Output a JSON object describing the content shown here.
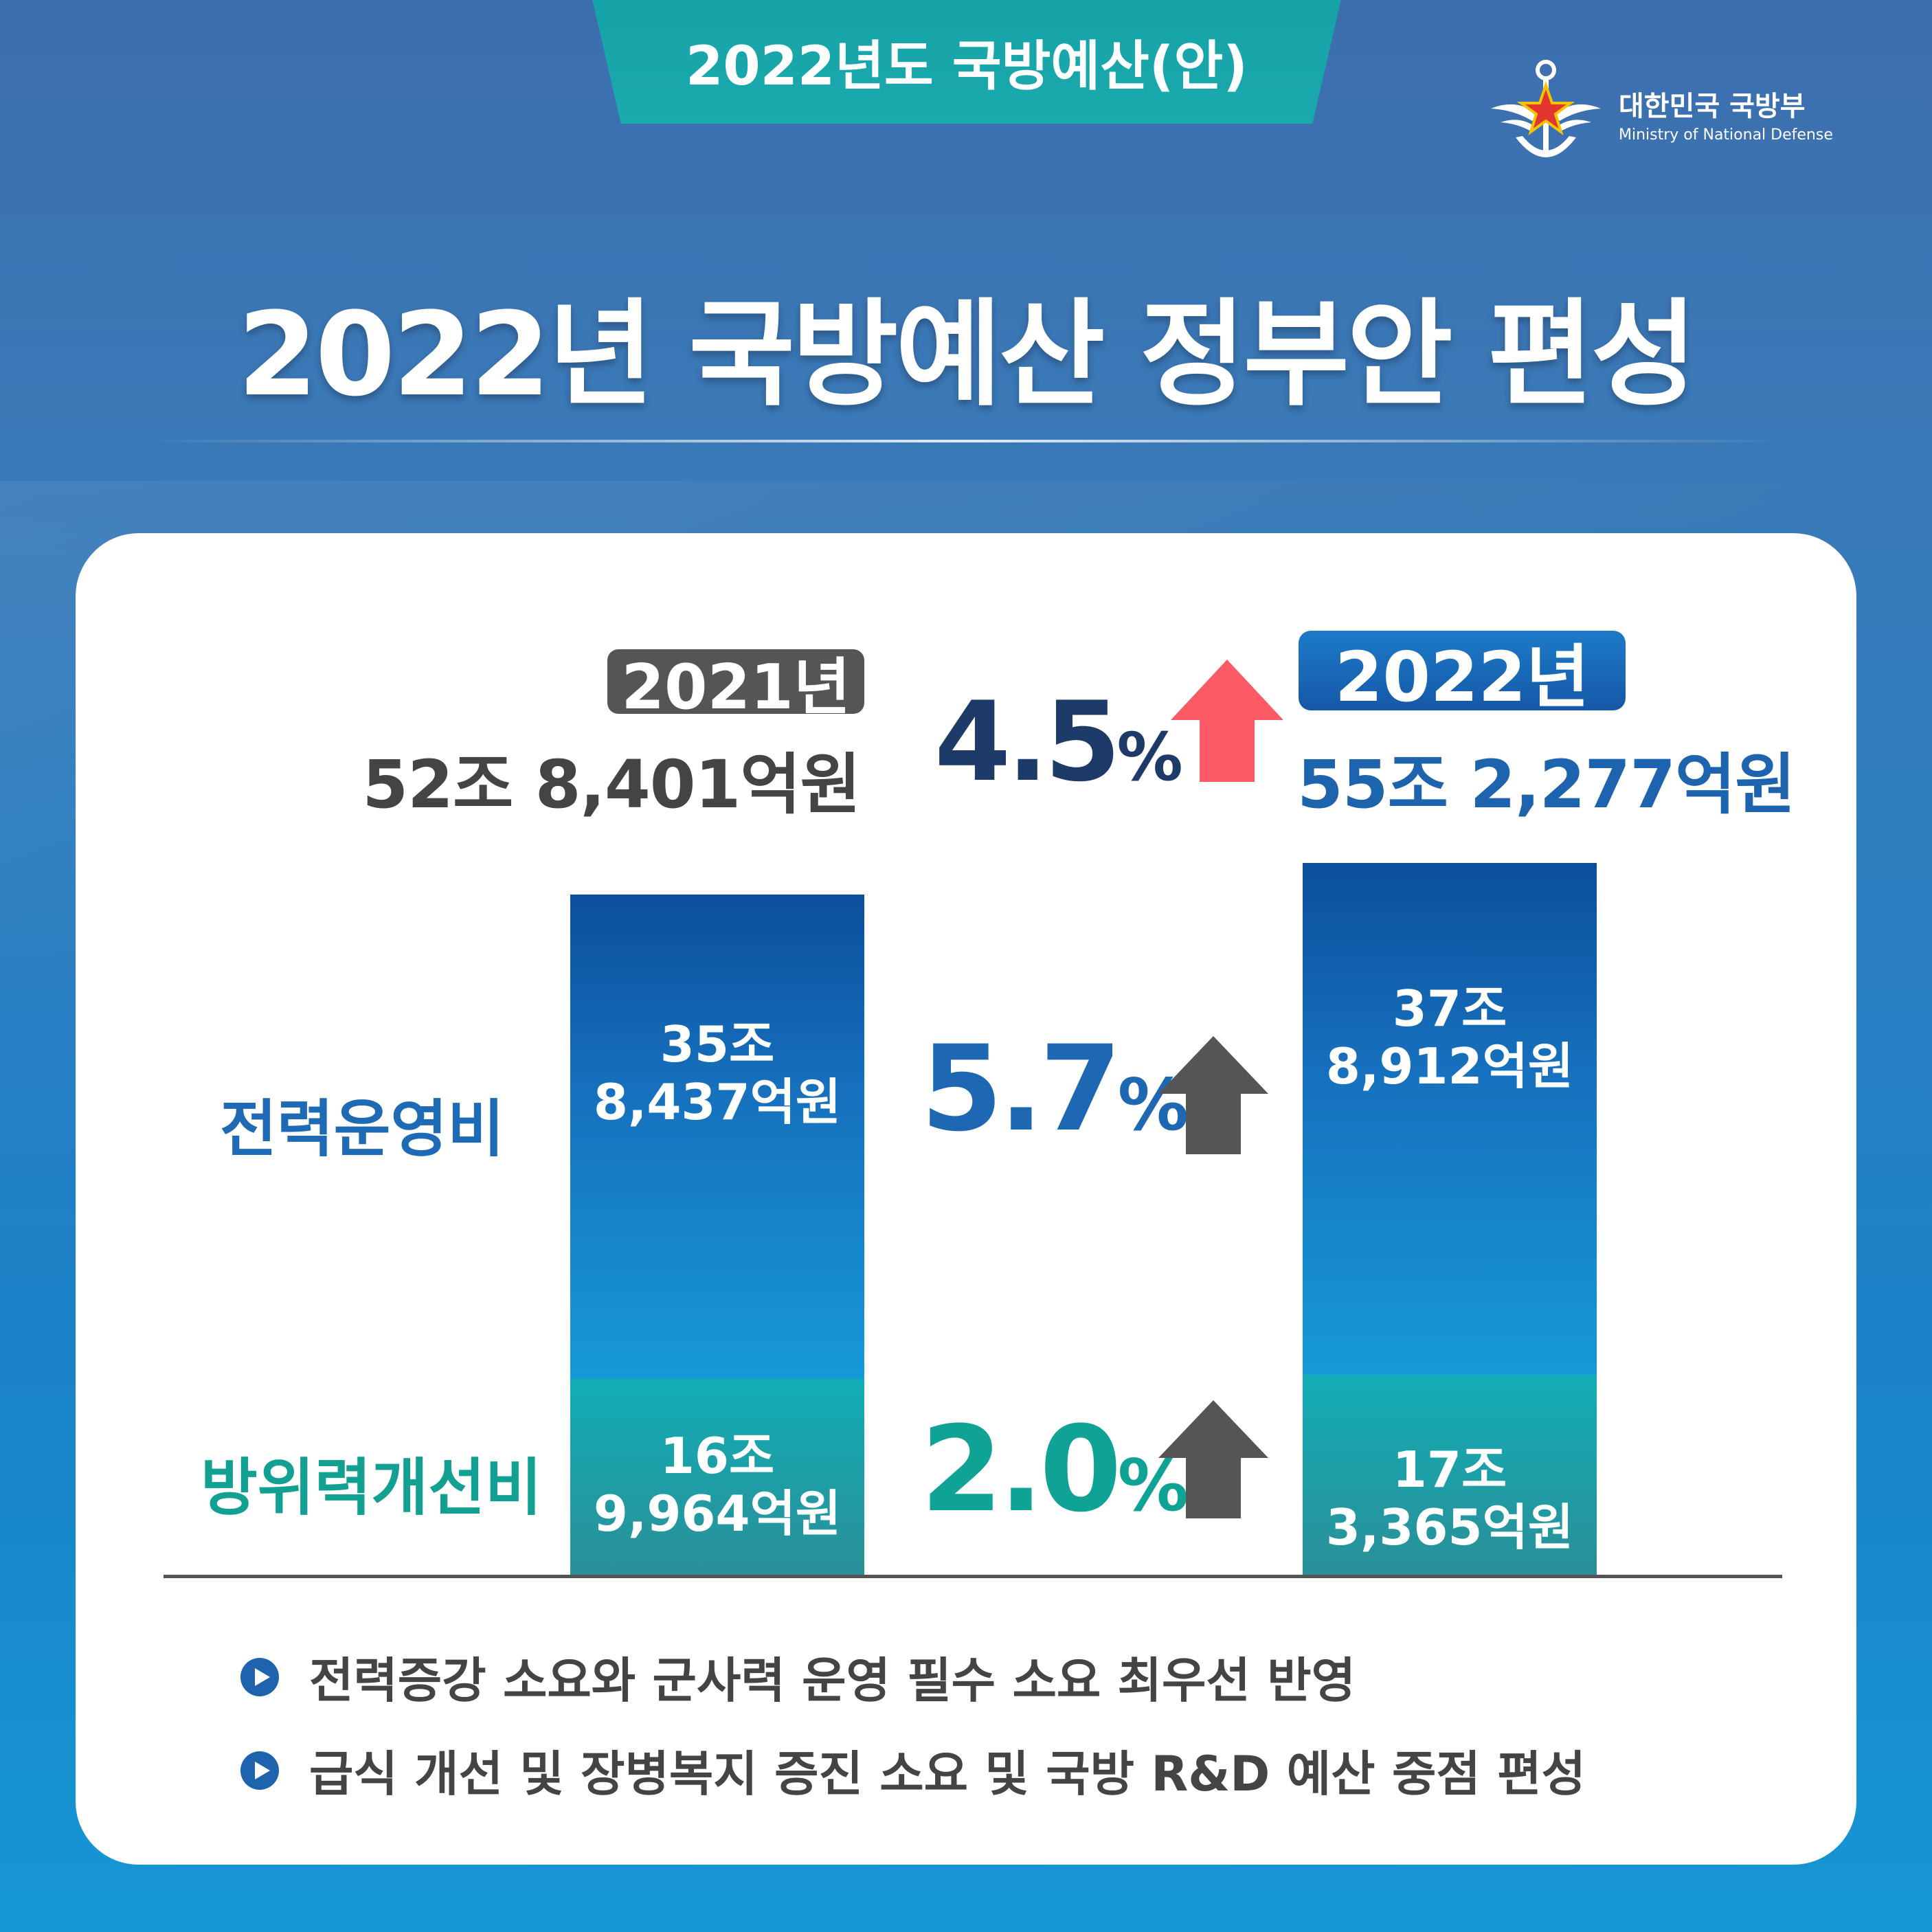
{
  "header": {
    "tab_label": "2022년도 국방예산(안)",
    "headline": "2022년 국방예산 정부안 편성"
  },
  "ministry": {
    "name_ko": "대한민국 국방부",
    "name_en": "Ministry of National Defense"
  },
  "summary": {
    "year_2021": "2021년",
    "total_2021": "52조 8,401억원",
    "change_value": "4.5",
    "change_unit": "%",
    "year_2022": "2022년",
    "total_2022": "55조 2,277억원"
  },
  "colors": {
    "up_red": "#fc5b66",
    "up_dark": "#555555",
    "operating": "#1e6ab4",
    "improvement": "#12a093"
  },
  "icons": {
    "ministry": "ministry-emblem-icon",
    "arrow": "arrow-up-icon",
    "bullet": "play-circle-icon"
  },
  "chart_data": {
    "type": "bar",
    "stacked": true,
    "categories": [
      "2021년",
      "2022년"
    ],
    "unit": "억원",
    "series": [
      {
        "name": "방위력개선비",
        "values": [
          169964,
          173365
        ],
        "labels": [
          [
            "16조",
            "9,964억원"
          ],
          [
            "17조",
            "3,365억원"
          ]
        ],
        "change": "2.0",
        "change_unit": "%"
      },
      {
        "name": "전력운영비",
        "values": [
          358437,
          378912
        ],
        "labels": [
          [
            "35조",
            "8,437억원"
          ],
          [
            "37조",
            "8,912억원"
          ]
        ],
        "change": "5.7",
        "change_unit": "%"
      }
    ]
  },
  "notes": [
    "전력증강 소요와 군사력 운영 필수 소요 최우선 반영",
    "급식 개선 및 장병복지 증진 소요 및 국방 R&D 예산 중점 편성"
  ]
}
